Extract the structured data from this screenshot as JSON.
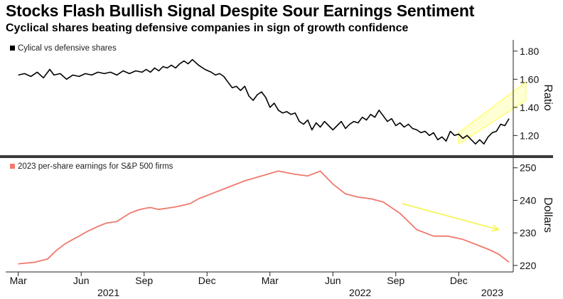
{
  "title": "Stocks Flash Bullish Signal Despite Sour Earnings Sentiment",
  "subtitle": "Cyclical shares beating defensive companies in sign of growth confidence",
  "chart_data": [
    {
      "type": "line",
      "name": "top-panel",
      "legend": "Cylical vs defensive shares",
      "ylabel": "Ratio",
      "ylim": [
        1.06,
        1.88
      ],
      "yticks": [
        1.2,
        1.4,
        1.6,
        1.8
      ],
      "ytick_labels": [
        "1.20",
        "1.40",
        "1.60",
        "1.80"
      ],
      "color": "#000000",
      "x": [
        0,
        0.3,
        0.6,
        0.9,
        1.2,
        1.5,
        1.7,
        2.0,
        2.3,
        2.6,
        2.9,
        3.2,
        3.5,
        3.8,
        4.1,
        4.4,
        4.7,
        5.0,
        5.3,
        5.6,
        5.9,
        6.1,
        6.3,
        6.5,
        6.7,
        6.9,
        7.1,
        7.3,
        7.5,
        7.7,
        7.9,
        8.1,
        8.3,
        8.6,
        8.9,
        9.2,
        9.4,
        9.6,
        9.8,
        10.0,
        10.2,
        10.4,
        10.6,
        10.8,
        11.0,
        11.2,
        11.4,
        11.6,
        11.8,
        12.0,
        12.2,
        12.4,
        12.6,
        12.8,
        13.0,
        13.2,
        13.4,
        13.6,
        13.8,
        14.0,
        14.2,
        14.4,
        14.6,
        14.8,
        15.0,
        15.2,
        15.4,
        15.6,
        15.8,
        16.0,
        16.2,
        16.4,
        16.6,
        16.8,
        17.0,
        17.2,
        17.4,
        17.6,
        17.8,
        18.0,
        18.2,
        18.4,
        18.6,
        18.8,
        19.0,
        19.2,
        19.4,
        19.6,
        19.8,
        20.0,
        20.2,
        20.4,
        20.6,
        20.8,
        21.0,
        21.2,
        21.4,
        21.6,
        21.8,
        22.0,
        22.2,
        22.4,
        22.6,
        22.8,
        23.0,
        23.2,
        23.4
      ],
      "values": [
        1.63,
        1.64,
        1.62,
        1.65,
        1.61,
        1.67,
        1.63,
        1.64,
        1.6,
        1.63,
        1.62,
        1.64,
        1.63,
        1.65,
        1.64,
        1.65,
        1.63,
        1.66,
        1.64,
        1.66,
        1.65,
        1.67,
        1.65,
        1.68,
        1.66,
        1.69,
        1.68,
        1.7,
        1.68,
        1.71,
        1.73,
        1.71,
        1.74,
        1.7,
        1.67,
        1.65,
        1.63,
        1.64,
        1.62,
        1.58,
        1.54,
        1.55,
        1.52,
        1.55,
        1.48,
        1.45,
        1.49,
        1.51,
        1.47,
        1.4,
        1.43,
        1.38,
        1.36,
        1.37,
        1.35,
        1.36,
        1.3,
        1.28,
        1.31,
        1.24,
        1.29,
        1.26,
        1.3,
        1.27,
        1.24,
        1.27,
        1.3,
        1.25,
        1.28,
        1.3,
        1.29,
        1.33,
        1.31,
        1.35,
        1.33,
        1.38,
        1.34,
        1.3,
        1.32,
        1.27,
        1.29,
        1.26,
        1.28,
        1.25,
        1.24,
        1.22,
        1.23,
        1.2,
        1.22,
        1.17,
        1.19,
        1.16,
        1.23,
        1.2,
        1.21,
        1.18,
        1.2,
        1.17,
        1.14,
        1.17,
        1.14,
        1.19,
        1.22,
        1.23,
        1.28,
        1.27,
        1.32
      ]
    },
    {
      "type": "line",
      "name": "bottom-panel",
      "legend": "2023 per-share earnings for S&P 500 firms",
      "ylabel": "Dollars",
      "ylim": [
        218,
        253
      ],
      "yticks": [
        220,
        230,
        240,
        250
      ],
      "ytick_labels": [
        "220",
        "230",
        "240",
        "250"
      ],
      "color": "#f07a6e",
      "x": [
        0,
        0.8,
        1.4,
        1.8,
        2.2,
        2.6,
        2.9,
        3.3,
        3.8,
        4.2,
        4.7,
        5.3,
        5.7,
        6.0,
        6.3,
        6.7,
        7.5,
        8.2,
        8.6,
        9.2,
        10.0,
        10.8,
        11.6,
        12.4,
        13.2,
        13.8,
        14.4,
        15.0,
        15.6,
        16.2,
        16.8,
        17.4,
        18.2,
        19.0,
        19.8,
        20.5,
        21.2,
        21.8,
        22.4,
        22.9,
        23.4
      ],
      "values": [
        220.5,
        221.0,
        222.0,
        224.5,
        226.5,
        228.0,
        229.0,
        230.5,
        232.0,
        233.0,
        233.5,
        236.0,
        237.0,
        237.5,
        237.8,
        237.2,
        238.0,
        239.0,
        240.5,
        242.0,
        244.0,
        246.0,
        247.5,
        249.0,
        248.0,
        247.5,
        249.0,
        245.0,
        242.0,
        241.0,
        240.5,
        239.5,
        236.0,
        231.0,
        229.0,
        229.0,
        228.0,
        226.5,
        225.0,
        223.5,
        221.0
      ]
    }
  ],
  "x_axis": {
    "xlim": [
      -0.6,
      23.6
    ],
    "month_ticks": [
      {
        "x": 0,
        "label": "Mar"
      },
      {
        "x": 3,
        "label": "Jun"
      },
      {
        "x": 6,
        "label": "Sep"
      },
      {
        "x": 9,
        "label": "Dec"
      },
      {
        "x": 12,
        "label": "Mar"
      },
      {
        "x": 15,
        "label": "Jun"
      },
      {
        "x": 18,
        "label": "Sep"
      },
      {
        "x": 21,
        "label": "Dec"
      }
    ],
    "year_ticks": [
      {
        "x": 4.3,
        "label": "2021"
      },
      {
        "x": 16.3,
        "label": "2022"
      },
      {
        "x": 22.6,
        "label": "2023"
      }
    ]
  },
  "annotations": {
    "highlight_color": "#ffff66",
    "arrow_color": "#f5f55a",
    "top_band": {
      "x_start": 21.0,
      "x_end": 24.2,
      "lower_start": 1.14,
      "lower_end": 1.45,
      "upper_start": 1.22,
      "upper_end": 1.58
    },
    "bottom_arrow": {
      "x_start": 18.3,
      "y_start": 239.0,
      "x_end": 22.9,
      "y_end": 231.0
    }
  }
}
